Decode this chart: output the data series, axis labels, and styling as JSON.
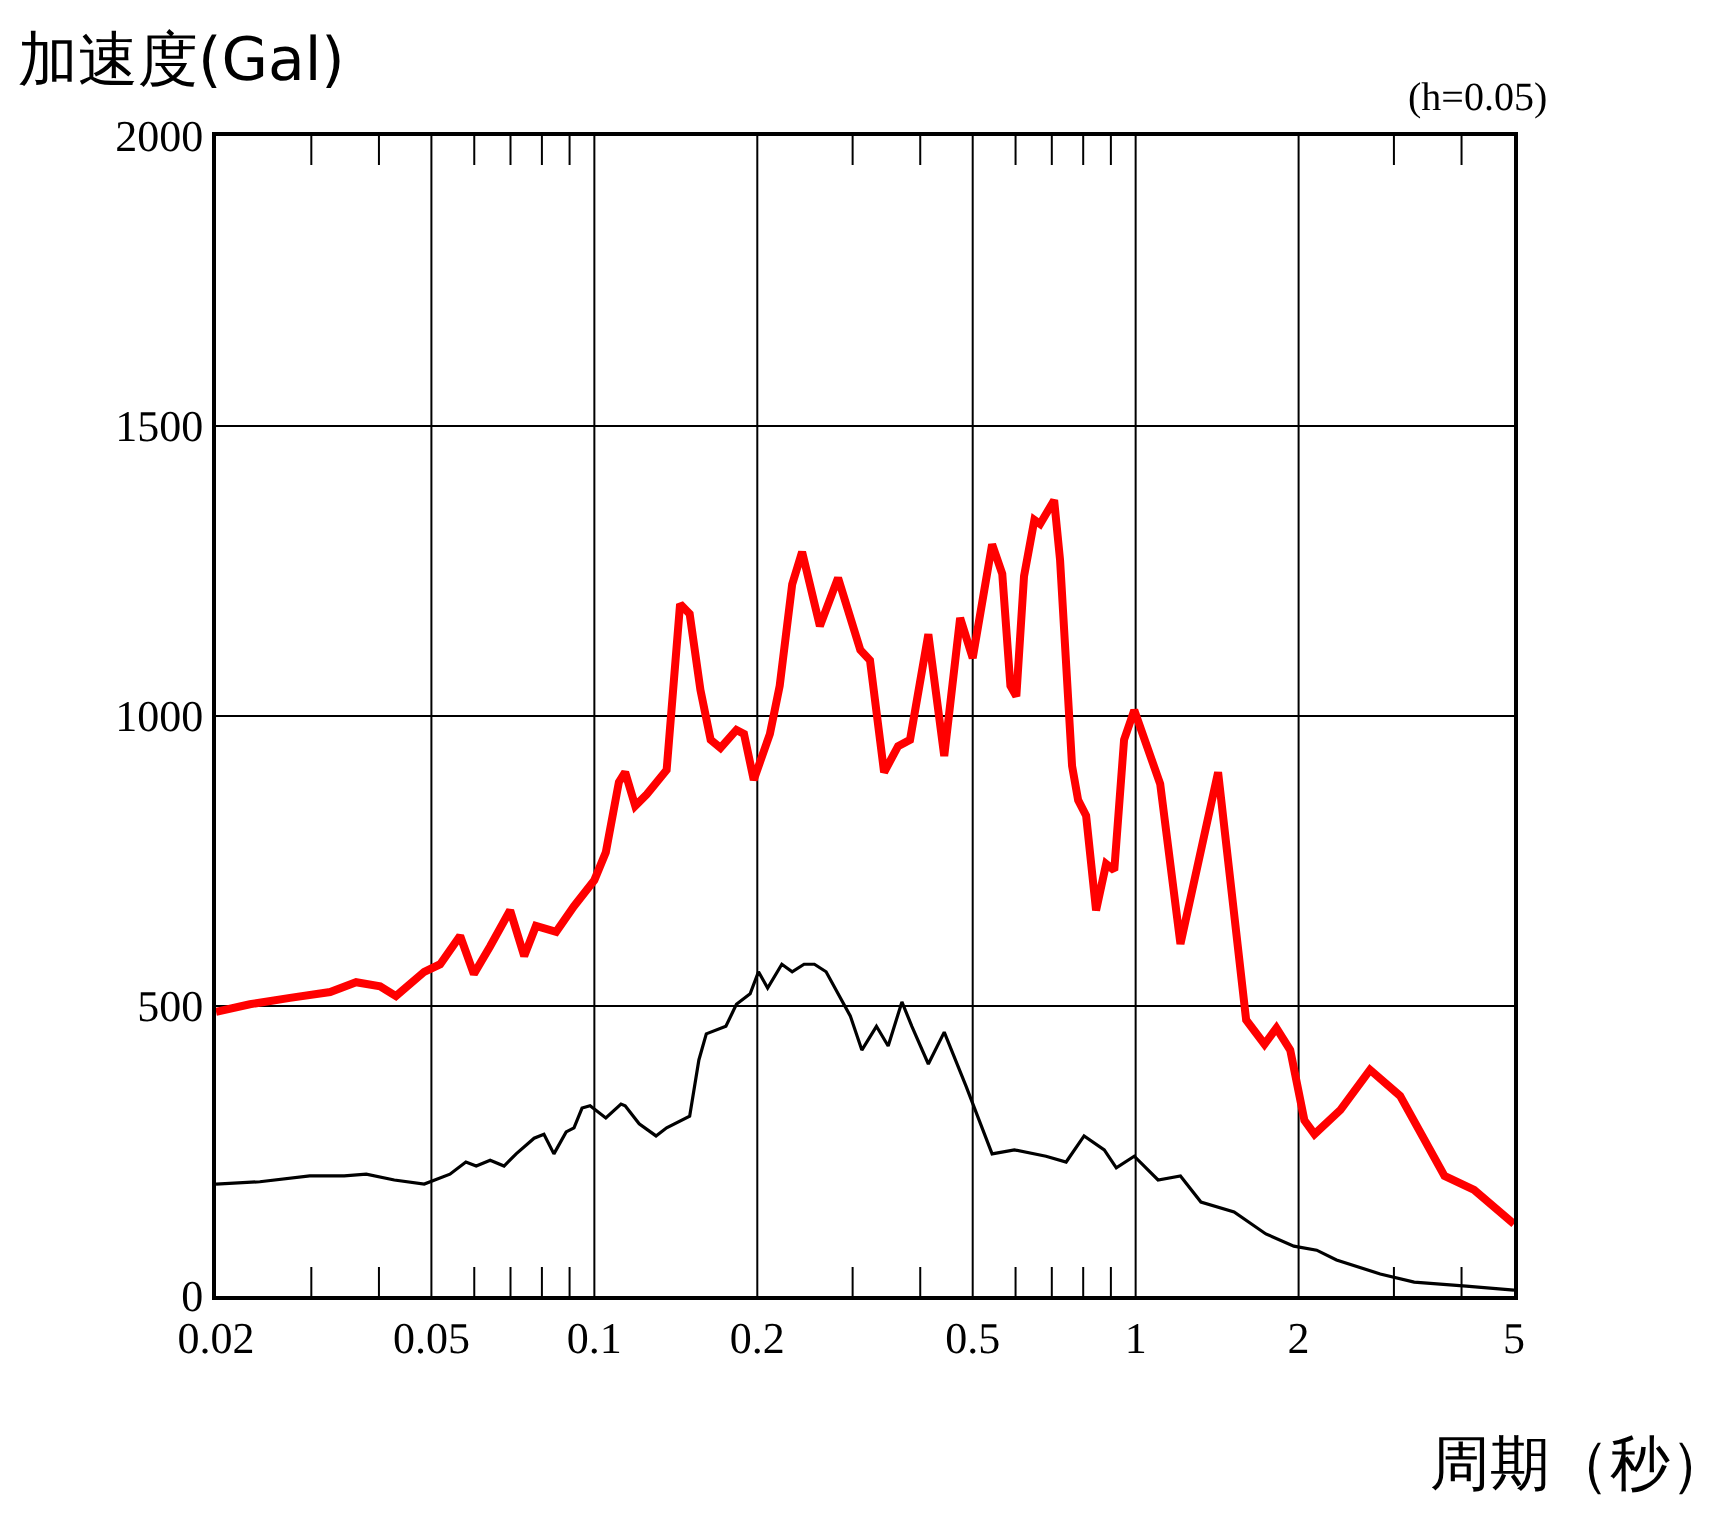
{
  "chart_data": {
    "type": "line",
    "ylabel": "加速度(Gal)",
    "xlabel": "周期（秒）",
    "annotations": [
      "(h=0.05)"
    ],
    "log": "x",
    "grid": true,
    "marker": "none",
    "xlim": [
      0.02,
      5
    ],
    "ylim": [
      0,
      2000
    ],
    "xticks": [
      0.02,
      {
        "value": 0.03,
        "label": null
      },
      {
        "value": 0.04,
        "label": null
      },
      0.05,
      {
        "value": 0.06,
        "label": null
      },
      {
        "value": 0.07,
        "label": null
      },
      {
        "value": 0.08,
        "label": null
      },
      {
        "value": 0.09,
        "label": null
      },
      0.1,
      0.2,
      {
        "value": 0.3,
        "label": null
      },
      {
        "value": 0.4,
        "label": null
      },
      0.5,
      {
        "value": 0.6,
        "label": null
      },
      {
        "value": 0.7,
        "label": null
      },
      {
        "value": 0.8,
        "label": null
      },
      {
        "value": 0.9,
        "label": null
      },
      1,
      2,
      {
        "value": 3,
        "label": null
      },
      {
        "value": 4,
        "label": null
      },
      5
    ],
    "yticks": [
      0,
      500,
      1000,
      1500,
      2000
    ],
    "series": [
      {
        "color": "#ff0000",
        "line_style": "solid",
        "x": [
          0.02,
          0.0231,
          0.0274,
          0.0325,
          0.0363,
          0.0402,
          0.043,
          0.0485,
          0.0519,
          0.0565,
          0.0599,
          0.0642,
          0.0699,
          0.0742,
          0.078,
          0.085,
          0.0917,
          0.1,
          0.105,
          0.111,
          0.114,
          0.119,
          0.125,
          0.136,
          0.144,
          0.15,
          0.157,
          0.164,
          0.171,
          0.183,
          0.189,
          0.197,
          0.211,
          0.22,
          0.232,
          0.242,
          0.261,
          0.282,
          0.31,
          0.323,
          0.343,
          0.364,
          0.383,
          0.414,
          0.443,
          0.474,
          0.5,
          0.543,
          0.567,
          0.587,
          0.602,
          0.622,
          0.65,
          0.666,
          0.707,
          0.725,
          0.763,
          0.783,
          0.81,
          0.845,
          0.882,
          0.913,
          0.952,
          0.994,
          1.11,
          1.21,
          1.42,
          1.6,
          1.73,
          1.82,
          1.93,
          2.05,
          2.14,
          2.39,
          2.71,
          3.08,
          3.72,
          4.22,
          5
        ],
        "values": [
          490,
          503,
          514,
          524,
          541,
          534,
          517,
          559,
          572,
          621,
          555,
          603,
          665,
          586,
          638,
          628,
          672,
          717,
          765,
          886,
          903,
          845,
          865,
          907,
          1193,
          1176,
          1045,
          959,
          945,
          976,
          969,
          890,
          969,
          1052,
          1227,
          1283,
          1155,
          1238,
          1114,
          1096,
          903,
          948,
          959,
          1141,
          931,
          1169,
          1100,
          1296,
          1245,
          1052,
          1034,
          1241,
          1338,
          1331,
          1372,
          1269,
          914,
          855,
          828,
          665,
          745,
          734,
          959,
          1010,
          883,
          607,
          903,
          476,
          434,
          462,
          424,
          303,
          279,
          321,
          390,
          345,
          207,
          183,
          124
        ]
      },
      {
        "color": "#000000",
        "line_style": "solid",
        "x": [
          0.02,
          0.0241,
          0.0298,
          0.0345,
          0.0379,
          0.0427,
          0.0485,
          0.0541,
          0.0579,
          0.0605,
          0.0642,
          0.0681,
          0.0717,
          0.0774,
          0.0807,
          0.0842,
          0.0887,
          0.0917,
          0.0949,
          0.0982,
          0.105,
          0.112,
          0.114,
          0.121,
          0.13,
          0.136,
          0.15,
          0.156,
          0.161,
          0.175,
          0.183,
          0.194,
          0.201,
          0.209,
          0.222,
          0.232,
          0.244,
          0.255,
          0.268,
          0.297,
          0.312,
          0.332,
          0.349,
          0.37,
          0.386,
          0.414,
          0.443,
          0.486,
          0.543,
          0.597,
          0.683,
          0.744,
          0.803,
          0.875,
          0.921,
          0.994,
          1.1,
          1.21,
          1.32,
          1.52,
          1.74,
          1.96,
          2.16,
          2.35,
          2.83,
          3.27,
          4.08,
          5
        ],
        "values": [
          193,
          197,
          207,
          207,
          210,
          200,
          193,
          210,
          231,
          224,
          234,
          224,
          245,
          272,
          279,
          245,
          283,
          290,
          324,
          328,
          307,
          331,
          328,
          297,
          276,
          290,
          310,
          407,
          452,
          465,
          503,
          521,
          559,
          531,
          572,
          559,
          572,
          572,
          559,
          483,
          424,
          465,
          431,
          507,
          465,
          400,
          455,
          362,
          245,
          252,
          241,
          231,
          276,
          252,
          221,
          241,
          200,
          207,
          162,
          145,
          107,
          86,
          79,
          62,
          38,
          24,
          17,
          10
        ]
      }
    ]
  }
}
